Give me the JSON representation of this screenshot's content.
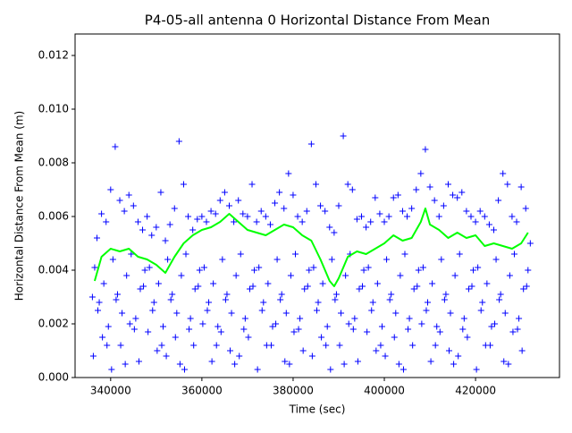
{
  "chart_data": {
    "type": "scatter",
    "title": "P4-05-all antenna 0 Horizontal Distance From Mean",
    "xlabel": "Time (sec)",
    "ylabel": "Horizontal Distance From Mean (m)",
    "xlim": [
      332200,
      438400
    ],
    "ylim": [
      0,
      0.0128
    ],
    "xticks": [
      340000,
      360000,
      380000,
      400000,
      420000
    ],
    "yticks": [
      {
        "value": 0,
        "label": "0.000"
      },
      {
        "value": 0.002,
        "label": "0.002"
      },
      {
        "value": 0.004,
        "label": "0.004"
      },
      {
        "value": 0.006,
        "label": "0.006"
      },
      {
        "value": 0.008,
        "label": "0.008"
      },
      {
        "value": 0.01,
        "label": "0.010"
      },
      {
        "value": 0.012,
        "label": "0.012"
      }
    ],
    "series": [
      {
        "style": "marker",
        "color": "#0000ff",
        "x": [
          336000,
          337000,
          338000,
          339000,
          340000,
          341000,
          342000,
          343000,
          344000,
          345000,
          346000,
          347000,
          348000,
          349000,
          350000,
          351000,
          352000,
          353000,
          354000,
          355000,
          356000,
          357000,
          358000,
          359000,
          360000,
          361000,
          362000,
          363000,
          364000,
          365000,
          366000,
          367000,
          368000,
          369000,
          370000,
          371000,
          372000,
          373000,
          374000,
          375000,
          376000,
          377000,
          378000,
          379000,
          380000,
          381000,
          382000,
          383000,
          384000,
          385000,
          386000,
          387000,
          388000,
          389000,
          390000,
          391000,
          392000,
          393000,
          394000,
          395000,
          396000,
          397000,
          398000,
          399000,
          400000,
          401000,
          402000,
          403000,
          404000,
          405000,
          406000,
          407000,
          408000,
          409000,
          410000,
          411000,
          412000,
          413000,
          414000,
          415000,
          416000,
          417000,
          418000,
          419000,
          420000,
          421000,
          422000,
          423000,
          424000,
          425000,
          426000,
          427000,
          428000,
          429000,
          430000,
          431000,
          432000,
          336500,
          337500,
          338500,
          339500,
          340500,
          341500,
          342500,
          343500,
          344500,
          345500,
          346500,
          347500,
          348500,
          349500,
          350500,
          351500,
          352500,
          353500,
          354500,
          355500,
          356500,
          357500,
          358500,
          359500,
          360500,
          361500,
          362500,
          363500,
          364500,
          365500,
          366500,
          367500,
          368500,
          369500,
          370500,
          371500,
          372500,
          373500,
          374500,
          375500,
          376500,
          377500,
          378500,
          379500,
          380500,
          381500,
          382500,
          383500,
          384500,
          385500,
          386500,
          387500,
          388500,
          389500,
          390500,
          391500,
          392500,
          393500,
          394500,
          395500,
          396500,
          397500,
          398500,
          399500,
          400500,
          401500,
          402500,
          403500,
          404500,
          405500,
          406500,
          407500,
          408500,
          409500,
          410500,
          411500,
          412500,
          413500,
          414500,
          415500,
          416500,
          417500,
          418500,
          419500,
          420500,
          421500,
          422500,
          423500,
          424500,
          425500,
          426500,
          427500,
          428500,
          429500,
          430500,
          431500,
          336200,
          338200,
          340200,
          342200,
          344200,
          346200,
          348200,
          350200,
          352200,
          354200,
          356200,
          358200,
          360200,
          362200,
          364200,
          366200,
          368200,
          370200,
          372200,
          374200,
          376200,
          378200,
          380200,
          382200,
          384200,
          386200,
          388200,
          390200,
          392200,
          394200,
          396200,
          398200,
          400200,
          402200,
          404200,
          406200,
          408200,
          410200,
          412200,
          414200,
          416200,
          418200,
          420200,
          422200,
          424200,
          426200,
          428200,
          430200,
          337200,
          339200,
          341200,
          343200,
          345200,
          347200,
          349200,
          351200,
          353200,
          355200,
          357200,
          359200,
          361200,
          363200,
          365200,
          367200,
          369200,
          371200,
          373200,
          375200,
          377200,
          379200,
          381200,
          383200,
          385200,
          387200,
          389200,
          391200,
          393200,
          395200,
          397200,
          399200,
          401200,
          403200,
          405200,
          407200,
          409200,
          411200,
          413200,
          415200,
          417200,
          419200,
          421200,
          423200,
          425200,
          427200,
          429200,
          431200
        ],
        "values": [
          0.003,
          0.0052,
          0.0061,
          0.0058,
          0.007,
          0.0086,
          0.0066,
          0.0062,
          0.0068,
          0.0064,
          0.0058,
          0.0055,
          0.006,
          0.0053,
          0.0056,
          0.0069,
          0.0051,
          0.0057,
          0.0063,
          0.0088,
          0.0072,
          0.006,
          0.0055,
          0.0059,
          0.006,
          0.0058,
          0.0062,
          0.0061,
          0.0066,
          0.0069,
          0.0064,
          0.0058,
          0.0066,
          0.0061,
          0.006,
          0.0072,
          0.0058,
          0.0062,
          0.006,
          0.0057,
          0.0065,
          0.0069,
          0.0063,
          0.0076,
          0.0068,
          0.006,
          0.0058,
          0.0062,
          0.0087,
          0.0072,
          0.0064,
          0.0062,
          0.0056,
          0.0054,
          0.0064,
          0.009,
          0.0072,
          0.007,
          0.0059,
          0.006,
          0.0056,
          0.0058,
          0.0067,
          0.0061,
          0.0058,
          0.006,
          0.0067,
          0.0068,
          0.0062,
          0.006,
          0.0063,
          0.007,
          0.0076,
          0.0085,
          0.0071,
          0.0066,
          0.006,
          0.0064,
          0.0072,
          0.0068,
          0.0067,
          0.0069,
          0.0062,
          0.006,
          0.0058,
          0.0062,
          0.006,
          0.0057,
          0.0055,
          0.0066,
          0.0076,
          0.0072,
          0.006,
          0.0058,
          0.0071,
          0.0063,
          0.005,
          0.0041,
          0.0028,
          0.0035,
          0.0019,
          0.0044,
          0.0031,
          0.0024,
          0.0038,
          0.0046,
          0.0022,
          0.0033,
          0.004,
          0.0041,
          0.0028,
          0.0035,
          0.0019,
          0.0044,
          0.0031,
          0.0024,
          0.0038,
          0.0046,
          0.0022,
          0.0033,
          0.004,
          0.0041,
          0.0028,
          0.0035,
          0.0019,
          0.0044,
          0.0031,
          0.0024,
          0.0038,
          0.0046,
          0.0022,
          0.0033,
          0.004,
          0.0041,
          0.0028,
          0.0035,
          0.0019,
          0.0044,
          0.0031,
          0.0024,
          0.0038,
          0.0046,
          0.0022,
          0.0033,
          0.004,
          0.0041,
          0.0028,
          0.0035,
          0.0019,
          0.0044,
          0.0031,
          0.0024,
          0.0038,
          0.0046,
          0.0022,
          0.0033,
          0.004,
          0.0041,
          0.0028,
          0.0035,
          0.0019,
          0.0044,
          0.0031,
          0.0024,
          0.0038,
          0.0046,
          0.0022,
          0.0033,
          0.004,
          0.0041,
          0.0028,
          0.0035,
          0.0019,
          0.0044,
          0.0031,
          0.0024,
          0.0038,
          0.0046,
          0.0022,
          0.0033,
          0.004,
          0.0041,
          0.0028,
          0.0035,
          0.0019,
          0.0044,
          0.0031,
          0.0024,
          0.0038,
          0.0046,
          0.0022,
          0.0033,
          0.004,
          0.0008,
          0.0015,
          0.0003,
          0.0012,
          0.002,
          0.0006,
          0.0017,
          0.001,
          0.0008,
          0.0015,
          0.0003,
          0.0012,
          0.002,
          0.0006,
          0.0017,
          0.001,
          0.0008,
          0.0015,
          0.0003,
          0.0012,
          0.002,
          0.0006,
          0.0017,
          0.001,
          0.0008,
          0.0015,
          0.0003,
          0.0012,
          0.002,
          0.0006,
          0.0017,
          0.001,
          0.0008,
          0.0015,
          0.0003,
          0.0012,
          0.002,
          0.0006,
          0.0017,
          0.001,
          0.0008,
          0.0015,
          0.0003,
          0.0012,
          0.002,
          0.0006,
          0.0017,
          0.001,
          0.0025,
          0.0012,
          0.0029,
          0.0005,
          0.0018,
          0.0034,
          0.0025,
          0.0012,
          0.0029,
          0.0005,
          0.0018,
          0.0034,
          0.0025,
          0.0012,
          0.0029,
          0.0005,
          0.0018,
          0.0034,
          0.0025,
          0.0012,
          0.0029,
          0.0005,
          0.0018,
          0.0034,
          0.0025,
          0.0012,
          0.0029,
          0.0005,
          0.0018,
          0.0034,
          0.0025,
          0.0012,
          0.0029,
          0.0005,
          0.0018,
          0.0034,
          0.0025,
          0.0012,
          0.0029,
          0.0005,
          0.0018,
          0.0034,
          0.0025,
          0.0012,
          0.0029,
          0.0005,
          0.0018,
          0.0034
        ]
      },
      {
        "style": "line",
        "color": "#00ff00",
        "x": [
          336500,
          338000,
          340000,
          342000,
          344000,
          346000,
          348000,
          350000,
          352000,
          354000,
          356000,
          358000,
          360000,
          362000,
          364000,
          366000,
          368000,
          370000,
          372000,
          374000,
          376000,
          378000,
          380000,
          382000,
          384000,
          386000,
          388000,
          389000,
          390000,
          392000,
          394000,
          396000,
          398000,
          400000,
          402000,
          404000,
          406000,
          408000,
          409000,
          410000,
          412000,
          414000,
          416000,
          418000,
          420000,
          422000,
          424000,
          426000,
          428000,
          430000,
          431500
        ],
        "values": [
          0.0036,
          0.0045,
          0.0048,
          0.0047,
          0.0048,
          0.0045,
          0.0044,
          0.0042,
          0.0039,
          0.0045,
          0.005,
          0.0053,
          0.0055,
          0.0056,
          0.0058,
          0.0061,
          0.0058,
          0.0055,
          0.0054,
          0.0053,
          0.0055,
          0.0057,
          0.0056,
          0.0053,
          0.0051,
          0.0044,
          0.0036,
          0.0034,
          0.0037,
          0.0045,
          0.0047,
          0.0046,
          0.0048,
          0.005,
          0.0053,
          0.0051,
          0.0052,
          0.0058,
          0.0063,
          0.0057,
          0.0055,
          0.0052,
          0.0054,
          0.0052,
          0.0053,
          0.0049,
          0.005,
          0.0049,
          0.0048,
          0.005,
          0.0054
        ]
      }
    ]
  }
}
